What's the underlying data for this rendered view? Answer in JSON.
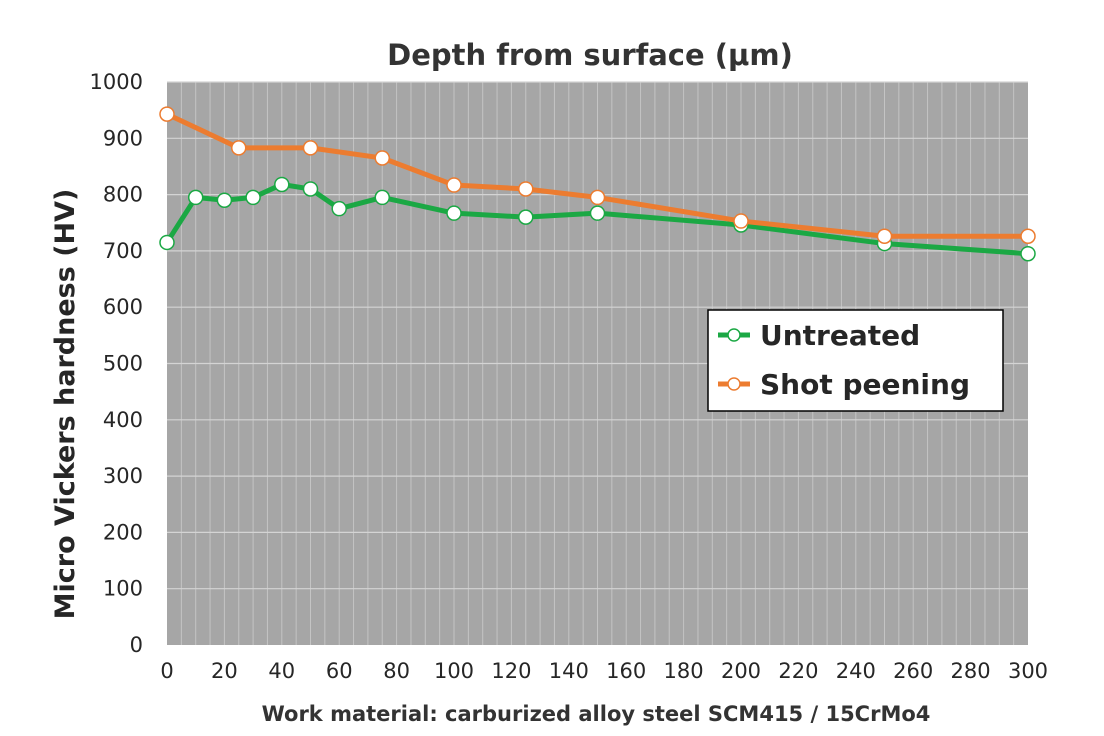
{
  "chart_data": {
    "type": "line",
    "title": "Depth from surface (μm)",
    "xlabel": "",
    "ylabel": "Micro Vickers hardness (HV)",
    "caption": "Work material: carburized alloy steel SCM415 / 15CrMo4",
    "xlim": [
      0,
      300
    ],
    "ylim": [
      0,
      1000
    ],
    "x_ticks": [
      "0",
      "20",
      "40",
      "60",
      "80",
      "100",
      "120",
      "140",
      "160",
      "180",
      "200",
      "220",
      "240",
      "260",
      "280",
      "300"
    ],
    "y_ticks": [
      "0",
      "100",
      "200",
      "300",
      "400",
      "500",
      "600",
      "700",
      "800",
      "900",
      "1000"
    ],
    "grid": true,
    "legend_position": "right",
    "plot_background": "#a6a6a6",
    "series": [
      {
        "name": "Untreated",
        "color": "#1ba844",
        "marker": "open-circle",
        "x": [
          0,
          10,
          20,
          30,
          40,
          50,
          60,
          75,
          100,
          125,
          150,
          200,
          250,
          300
        ],
        "y": [
          715,
          795,
          790,
          795,
          818,
          810,
          775,
          795,
          767,
          760,
          767,
          746,
          713,
          695
        ]
      },
      {
        "name": "Shot peening",
        "color": "#ec7c30",
        "marker": "open-circle",
        "x": [
          0,
          25,
          50,
          75,
          100,
          125,
          150,
          200,
          250,
          300
        ],
        "y": [
          943,
          883,
          883,
          865,
          817,
          810,
          795,
          753,
          726,
          726
        ]
      }
    ]
  }
}
